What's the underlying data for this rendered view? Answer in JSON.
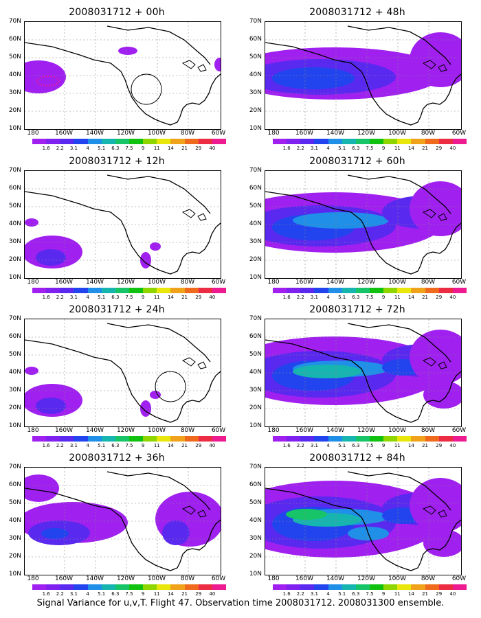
{
  "panels": [
    {
      "title": "2008031712 + 00h",
      "col": 0,
      "row": 0,
      "level": 0
    },
    {
      "title": "2008031712 + 48h",
      "col": 1,
      "row": 0,
      "level": 3
    },
    {
      "title": "2008031712 + 12h",
      "col": 0,
      "row": 1,
      "level": 1
    },
    {
      "title": "2008031712 + 60h",
      "col": 1,
      "row": 1,
      "level": 4
    },
    {
      "title": "2008031712 + 24h",
      "col": 0,
      "row": 2,
      "level": 1
    },
    {
      "title": "2008031712 + 72h",
      "col": 1,
      "row": 2,
      "level": 5
    },
    {
      "title": "2008031712 + 36h",
      "col": 0,
      "row": 3,
      "level": 2
    },
    {
      "title": "2008031712 + 84h",
      "col": 1,
      "row": 3,
      "level": 6
    }
  ],
  "lat_labels": [
    "70N",
    "60N",
    "50N",
    "40N",
    "30N",
    "20N",
    "10N"
  ],
  "lon_labels": [
    "180",
    "160W",
    "140W",
    "120W",
    "100W",
    "80W",
    "60W"
  ],
  "colorbar": {
    "labels": [
      "1.6",
      "2.2",
      "3.1",
      "4",
      "5.1",
      "6.3",
      "7.5",
      "9",
      "11",
      "14",
      "21",
      "29",
      "40"
    ],
    "colors": [
      "#a020f0",
      "#7f21ef",
      "#5a29f0",
      "#2244ee",
      "#1f8fe8",
      "#16b5b0",
      "#17c467",
      "#10c10f",
      "#8fd600",
      "#e8e60a",
      "#f0a21a",
      "#f06a1e",
      "#ec2c43",
      "#ee1a8f"
    ]
  },
  "footer": "Signal Variance for u,v,T. Flight 47. Observation time 2008031712. 2008031300 ensemble."
}
